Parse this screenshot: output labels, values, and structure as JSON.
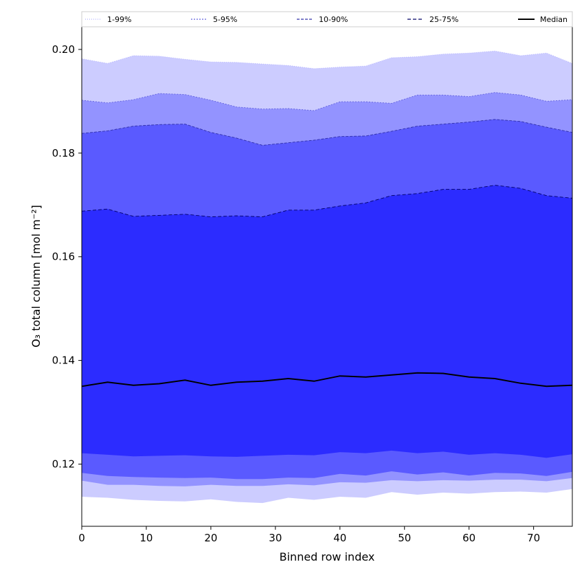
{
  "chart_data": {
    "type": "area",
    "xlabel": "Binned row index",
    "ylabel": "O₃ total column [mol m⁻²]",
    "xlim": [
      0,
      76
    ],
    "ylim": [
      0.108,
      0.2045
    ],
    "xticks": [
      0,
      10,
      20,
      30,
      40,
      50,
      60,
      70
    ],
    "yticks": [
      0.12,
      0.14,
      0.16,
      0.18,
      0.2
    ],
    "ytick_labels": [
      "0.12",
      "0.14",
      "0.16",
      "0.18",
      "0.20"
    ],
    "legend_position": "top",
    "x": [
      0,
      4,
      8,
      12,
      16,
      20,
      24,
      28,
      32,
      36,
      40,
      44,
      48,
      52,
      56,
      60,
      64,
      68,
      72,
      76
    ],
    "bands": [
      {
        "name": "1-99%",
        "fill": "#ccccff",
        "line_color": "#b0b0ff",
        "line_dash": "1,2",
        "lower": [
          0.1137,
          0.1135,
          0.1131,
          0.1129,
          0.1128,
          0.1132,
          0.1127,
          0.1125,
          0.1135,
          0.1131,
          0.1137,
          0.1135,
          0.1146,
          0.1141,
          0.1145,
          0.1143,
          0.1146,
          0.1147,
          0.1145,
          0.1152
        ],
        "upper": [
          0.1982,
          0.1973,
          0.1988,
          0.1987,
          0.1981,
          0.1976,
          0.1975,
          0.1972,
          0.1969,
          0.1963,
          0.1966,
          0.1968,
          0.1984,
          0.1986,
          0.1991,
          0.1993,
          0.1997,
          0.1988,
          0.1993,
          0.1973
        ]
      },
      {
        "name": "5-95%",
        "fill": "#9393ff",
        "line_color": "#6060dd",
        "line_dash": "2,2",
        "lower": [
          0.1168,
          0.116,
          0.116,
          0.1158,
          0.1157,
          0.116,
          0.1158,
          0.1158,
          0.1161,
          0.1159,
          0.1165,
          0.1164,
          0.1169,
          0.1167,
          0.1169,
          0.1168,
          0.117,
          0.117,
          0.1167,
          0.1173
        ],
        "upper": [
          0.1902,
          0.1897,
          0.1903,
          0.1915,
          0.1913,
          0.1902,
          0.1889,
          0.1885,
          0.1886,
          0.1882,
          0.1899,
          0.1899,
          0.1896,
          0.1912,
          0.1912,
          0.1909,
          0.1917,
          0.1912,
          0.19,
          0.1903
        ]
      },
      {
        "name": "10-90%",
        "fill": "#5a5aff",
        "line_color": "#3030aa",
        "line_dash": "4,2",
        "lower": [
          0.1183,
          0.1177,
          0.1175,
          0.1174,
          0.1173,
          0.1174,
          0.1171,
          0.1171,
          0.1174,
          0.1173,
          0.1181,
          0.1178,
          0.1186,
          0.118,
          0.1184,
          0.1178,
          0.1183,
          0.1182,
          0.1177,
          0.1185
        ],
        "upper": [
          0.1838,
          0.1843,
          0.1852,
          0.1855,
          0.1856,
          0.184,
          0.1829,
          0.1815,
          0.182,
          0.1825,
          0.1832,
          0.1833,
          0.1842,
          0.1852,
          0.1856,
          0.186,
          0.1865,
          0.1861,
          0.185,
          0.184
        ]
      },
      {
        "name": "25-75%",
        "fill": "#2c2cff",
        "line_color": "#000066",
        "line_dash": "5,3",
        "lower": [
          0.1221,
          0.1218,
          0.1215,
          0.1216,
          0.1217,
          0.1215,
          0.1214,
          0.1216,
          0.1218,
          0.1217,
          0.1223,
          0.1221,
          0.1226,
          0.1221,
          0.1224,
          0.1218,
          0.1221,
          0.1218,
          0.1212,
          0.1219
        ],
        "upper": [
          0.1688,
          0.1692,
          0.1678,
          0.168,
          0.1682,
          0.1677,
          0.1679,
          0.1677,
          0.169,
          0.169,
          0.1698,
          0.1704,
          0.1718,
          0.1722,
          0.173,
          0.173,
          0.1738,
          0.1732,
          0.1718,
          0.1713
        ]
      }
    ],
    "median": {
      "name": "Median",
      "color": "#000000",
      "values": [
        0.135,
        0.1358,
        0.1352,
        0.1355,
        0.1362,
        0.1352,
        0.1358,
        0.136,
        0.1365,
        0.136,
        0.137,
        0.1368,
        0.1372,
        0.1376,
        0.1375,
        0.1368,
        0.1365,
        0.1356,
        0.135,
        0.1352
      ]
    }
  }
}
